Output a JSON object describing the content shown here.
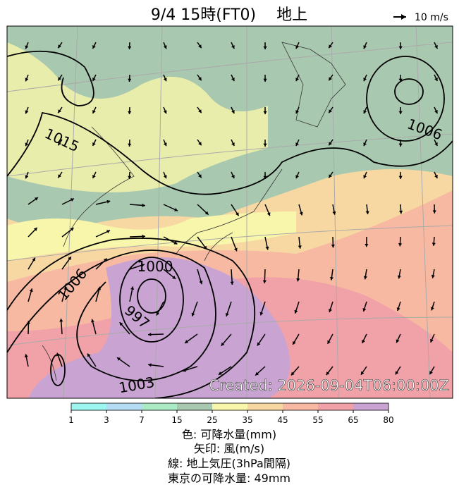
{
  "header": {
    "title": "9/4  15時(FT0)　 地上",
    "wind_scale": "10 m/s"
  },
  "map": {
    "isobar_labels": [
      "1015",
      "1006",
      "1006",
      "1000",
      "997",
      "1003"
    ],
    "created": "Created: 2026-09-04T06:00:00Z"
  },
  "colorbar": {
    "ticks": [
      1,
      3,
      7,
      15,
      25,
      35,
      45,
      55,
      65,
      80
    ],
    "colors": [
      "#9ef6f0",
      "#b4dcf2",
      "#aaeac4",
      "#a8c8b0",
      "#f8f6aa",
      "#f8d8a2",
      "#f7b9a2",
      "#f1a2a8",
      "#c9a3d2"
    ]
  },
  "captions": [
    "色: 可降水量(mm)",
    "矢印: 風(m/s)",
    "線: 地上気圧(3hPa間隔)",
    "東京の可降水量: 49mm"
  ]
}
